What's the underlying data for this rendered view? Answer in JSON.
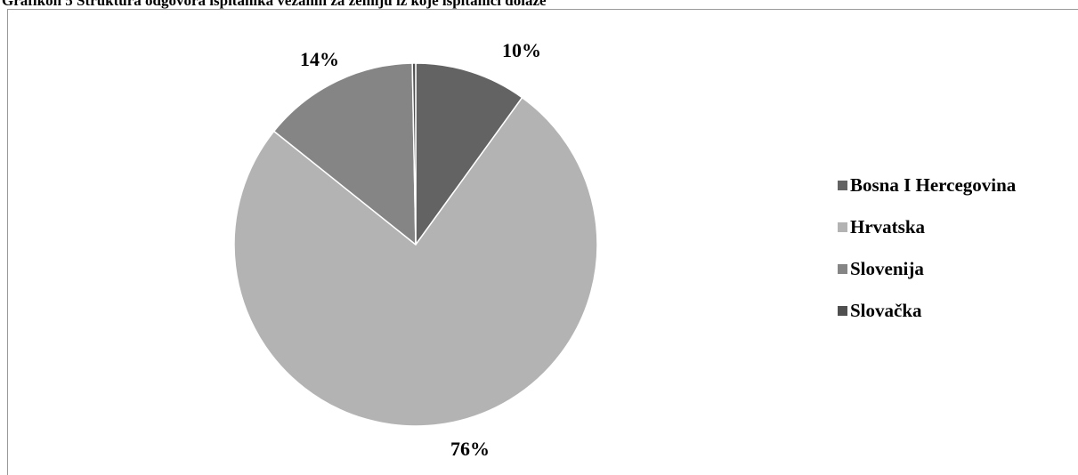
{
  "caption": "Grafikon 5 Struktura odgovora ispitanika vezanih za zemlju iz koje ispitanici dolaze",
  "chart_data": {
    "type": "pie",
    "title": "",
    "slices": [
      {
        "name": "Bosna I Hercegovina",
        "value": 10,
        "label": "10%",
        "color": "#636363"
      },
      {
        "name": "Hrvatska",
        "value": 76,
        "label": "76%",
        "color": "#b3b3b3"
      },
      {
        "name": "Slovenija",
        "value": 14,
        "label": "14%",
        "color": "#858585"
      },
      {
        "name": "Slovačka",
        "value": 0.3,
        "label": "",
        "color": "#4f4f4f"
      }
    ],
    "legend_position": "right"
  }
}
